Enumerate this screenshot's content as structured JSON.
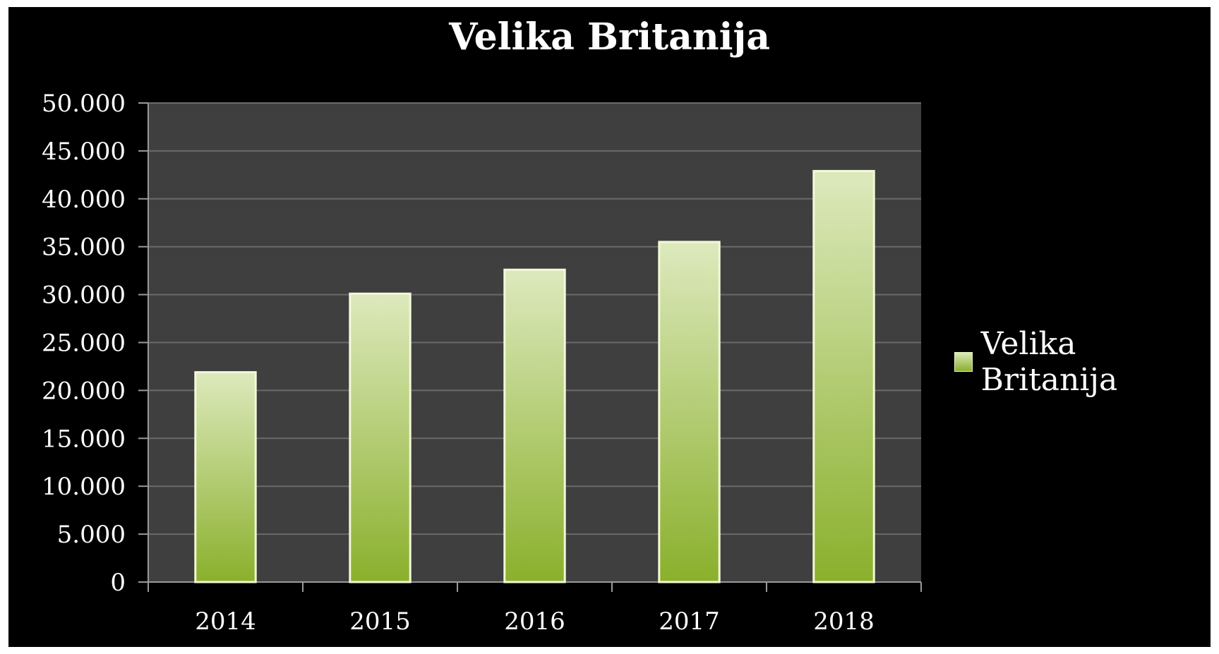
{
  "chart_data": {
    "type": "bar",
    "title": "Velika Britanija",
    "xlabel": "",
    "ylabel": "",
    "categories": [
      "2014",
      "2015",
      "2016",
      "2017",
      "2018"
    ],
    "series": [
      {
        "name": "Velika Britanija",
        "values": [
          21900,
          30100,
          32600,
          35500,
          42900
        ]
      }
    ],
    "ylim": [
      0,
      50000
    ],
    "yticks": [
      0,
      5000,
      10000,
      15000,
      20000,
      25000,
      30000,
      35000,
      40000,
      45000,
      50000
    ],
    "ytick_labels": [
      "0",
      "5.000",
      "10.000",
      "15.000",
      "20.000",
      "25.000",
      "30.000",
      "35.000",
      "40.000",
      "45.000",
      "50.000"
    ],
    "grid": true,
    "legend": "right",
    "colors": {
      "background": "#000000",
      "plot_area": "#3f3f3f",
      "gridline": "#6a6a6a",
      "bar_top": "#dde9bd",
      "bar_bottom": "#8ab02c",
      "bar_edge": "#f2f8d8"
    }
  }
}
